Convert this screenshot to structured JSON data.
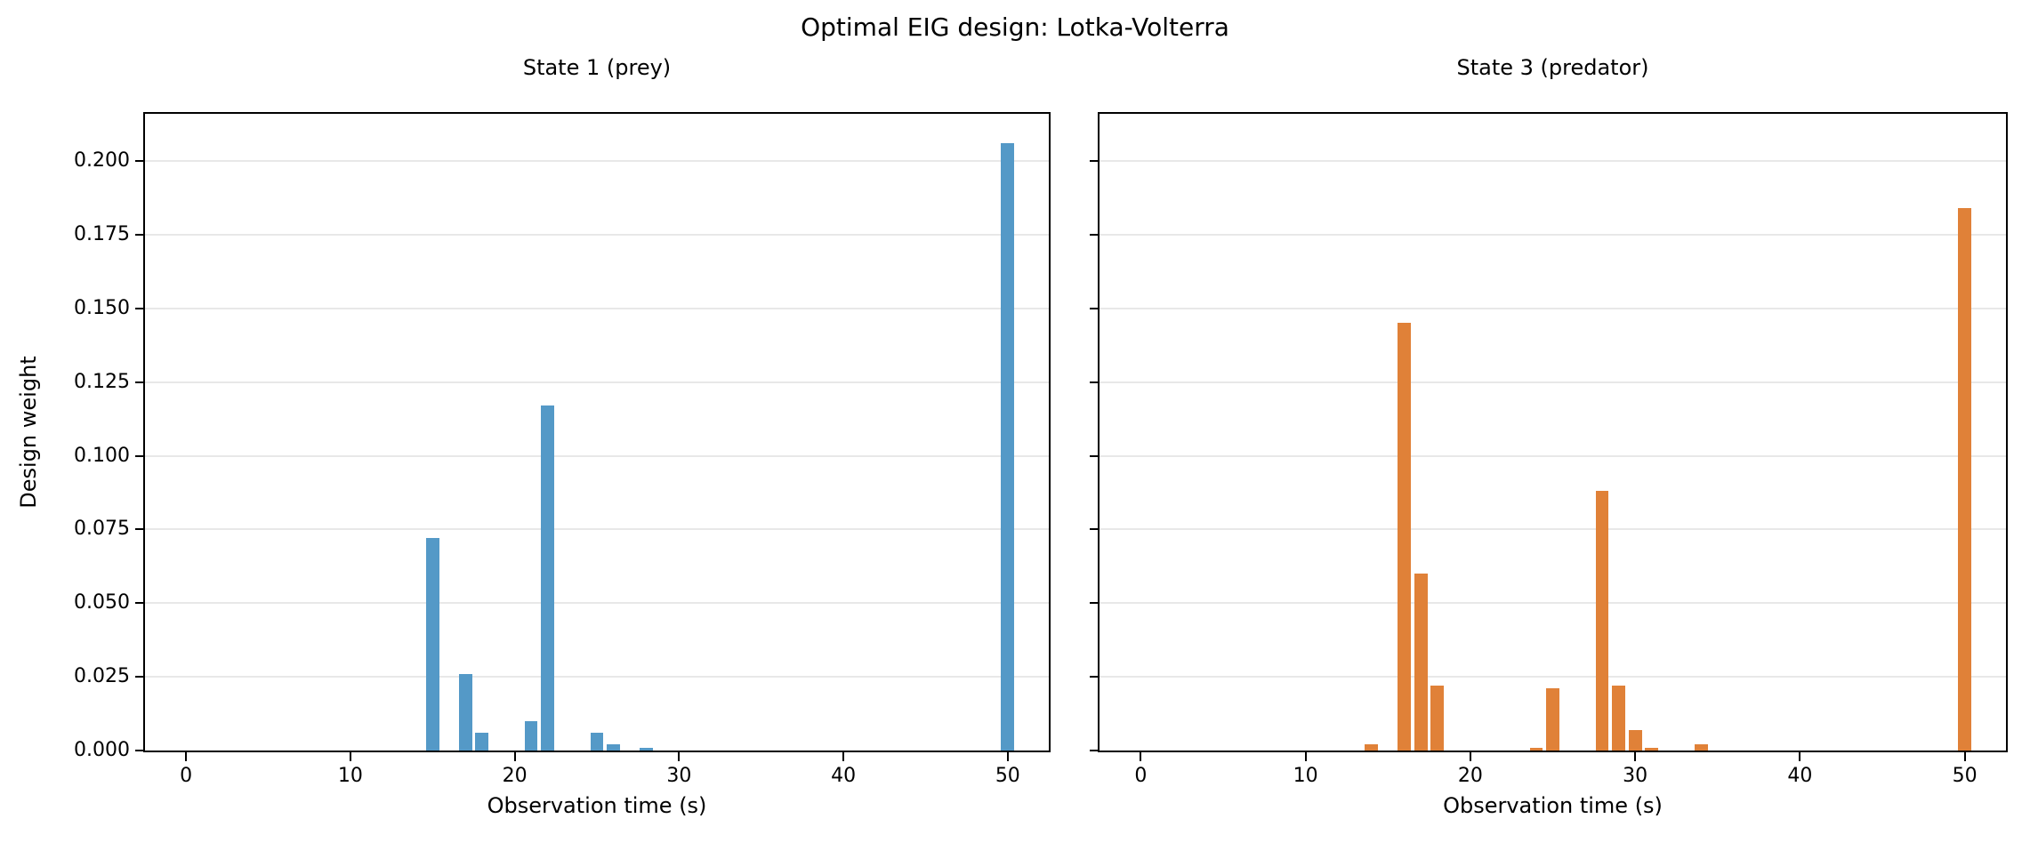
{
  "figure": {
    "title": "Optimal EIG design: Lotka-Volterra",
    "background": "#ffffff"
  },
  "chart_data": [
    {
      "type": "bar",
      "title": "State 1 (prey)",
      "xlabel": "Observation time (s)",
      "ylabel": "Design weight",
      "color": "#5499C7",
      "bar_width": 0.8,
      "x": [
        15,
        17,
        18,
        21,
        22,
        25,
        26,
        28,
        50
      ],
      "values": [
        0.072,
        0.026,
        0.006,
        0.01,
        0.117,
        0.006,
        0.002,
        0.001,
        0.206
      ],
      "xlim": [
        -2.5,
        52.5
      ],
      "ylim": [
        0,
        0.216
      ],
      "xtick_values": [
        0,
        10,
        20,
        30,
        40,
        50
      ],
      "xtick_labels": [
        "0",
        "10",
        "20",
        "30",
        "40",
        "50"
      ],
      "ytick_values": [
        0.0,
        0.025,
        0.05,
        0.075,
        0.1,
        0.125,
        0.15,
        0.175,
        0.2
      ],
      "ytick_labels": [
        "0.000",
        "0.025",
        "0.050",
        "0.075",
        "0.100",
        "0.125",
        "0.150",
        "0.175",
        "0.200"
      ],
      "show_ytick_labels": true,
      "grid": "horizontal",
      "legend": "none"
    },
    {
      "type": "bar",
      "title": "State 3 (predator)",
      "xlabel": "Observation time (s)",
      "ylabel": "",
      "color": "#E08138",
      "bar_width": 0.8,
      "x": [
        14,
        16,
        17,
        18,
        24,
        25,
        28,
        29,
        30,
        31,
        34,
        50
      ],
      "values": [
        0.002,
        0.145,
        0.06,
        0.022,
        0.001,
        0.021,
        0.088,
        0.022,
        0.007,
        0.001,
        0.002,
        0.184
      ],
      "xlim": [
        -2.5,
        52.5
      ],
      "ylim": [
        0,
        0.216
      ],
      "xtick_values": [
        0,
        10,
        20,
        30,
        40,
        50
      ],
      "xtick_labels": [
        "0",
        "10",
        "20",
        "30",
        "40",
        "50"
      ],
      "ytick_values": [
        0.0,
        0.025,
        0.05,
        0.075,
        0.1,
        0.125,
        0.15,
        0.175,
        0.2
      ],
      "ytick_labels": [
        "0.000",
        "0.025",
        "0.050",
        "0.075",
        "0.100",
        "0.125",
        "0.150",
        "0.175",
        "0.200"
      ],
      "show_ytick_labels": false,
      "grid": "horizontal",
      "legend": "none"
    }
  ]
}
